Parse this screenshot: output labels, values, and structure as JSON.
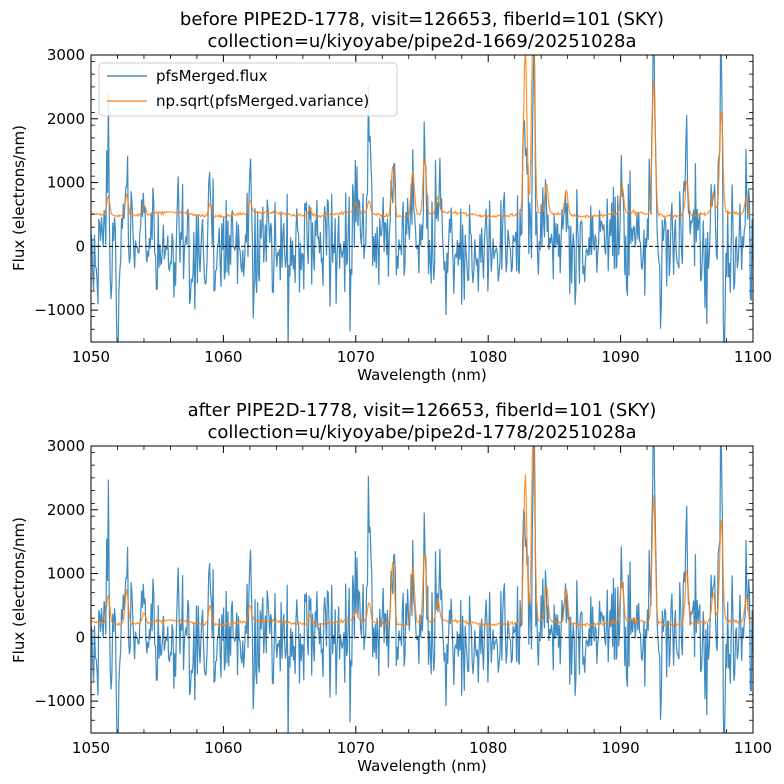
{
  "figure": {
    "background": "#ffffff"
  },
  "chart_data": [
    {
      "type": "line",
      "title_line1": "before PIPE2D-1778, visit=126653, fiberId=101 (SKY)",
      "title_line2": "collection=u/kiyoyabe/pipe2d-1669/20251028a",
      "xlabel": "Wavelength (nm)",
      "ylabel": "Flux (electrons/nm)",
      "xlim": [
        1050,
        1100
      ],
      "ylim": [
        -1500,
        3000
      ],
      "xticks": [
        1050,
        1060,
        1070,
        1080,
        1090,
        1100
      ],
      "xtick_labels": [
        "1050",
        "1060",
        "1070",
        "1080",
        "1090",
        "1100"
      ],
      "yticks": [
        -1000,
        0,
        1000,
        2000,
        3000
      ],
      "ytick_labels": [
        "−1000",
        "0",
        "1000",
        "2000",
        "3000"
      ],
      "hline": 0,
      "legend": {
        "position": "top-left",
        "entries": [
          "pfsMerged.flux",
          "np.sqrt(pfsMerged.variance)"
        ]
      },
      "noise_floor": 500,
      "series": [
        {
          "name": "pfsMerged.flux",
          "color": "#1f77b4"
        },
        {
          "name": "np.sqrt(pfsMerged.variance)",
          "color": "#ff7f0e"
        }
      ],
      "lines": [
        {
          "wl": 1051.3,
          "flux": 1650,
          "sigma": 300
        },
        {
          "wl": 1052.7,
          "flux": 700,
          "sigma": 350
        },
        {
          "wl": 1054.0,
          "flux": 500,
          "sigma": 150
        },
        {
          "wl": 1059.0,
          "flux": 900,
          "sigma": 200
        },
        {
          "wl": 1062.0,
          "flux": 700,
          "sigma": 200
        },
        {
          "wl": 1066.5,
          "flux": 600,
          "sigma": 120
        },
        {
          "wl": 1070.0,
          "flux": 500,
          "sigma": 150
        },
        {
          "wl": 1071.0,
          "flux": 1700,
          "sigma": 200
        },
        {
          "wl": 1072.8,
          "flux": 1200,
          "sigma": 800
        },
        {
          "wl": 1074.3,
          "flux": 1100,
          "sigma": 700
        },
        {
          "wl": 1075.2,
          "flux": 1400,
          "sigma": 900
        },
        {
          "wl": 1076.2,
          "flux": 600,
          "sigma": 250
        },
        {
          "wl": 1082.8,
          "flux": 3000,
          "sigma": 2600
        },
        {
          "wl": 1083.4,
          "flux": 3000,
          "sigma": 3000
        },
        {
          "wl": 1084.4,
          "flux": 700,
          "sigma": 450
        },
        {
          "wl": 1085.9,
          "flux": 600,
          "sigma": 400
        },
        {
          "wl": 1090.1,
          "flux": 950,
          "sigma": 450
        },
        {
          "wl": 1092.5,
          "flux": 3000,
          "sigma": 2100
        },
        {
          "wl": 1095.0,
          "flux": 1500,
          "sigma": 550
        },
        {
          "wl": 1097.0,
          "flux": 600,
          "sigma": 300
        },
        {
          "wl": 1097.6,
          "flux": 2200,
          "sigma": 1600
        },
        {
          "wl": 1099.5,
          "flux": 700,
          "sigma": 250
        }
      ],
      "absorptions": [
        {
          "wl": 1052.0,
          "flux": -1550
        },
        {
          "wl": 1082.8,
          "flux": -1550
        },
        {
          "wl": 1083.3,
          "flux": -1550
        },
        {
          "wl": 1093.0,
          "flux": -1100
        },
        {
          "wl": 1097.8,
          "flux": -1550
        },
        {
          "wl": 1051.5,
          "flux": -1000
        }
      ]
    },
    {
      "type": "line",
      "title_line1": "after PIPE2D-1778, visit=126653, fiberId=101 (SKY)",
      "title_line2": "collection=u/kiyoyabe/pipe2d-1778/20251028a",
      "xlabel": "Wavelength (nm)",
      "ylabel": "Flux (electrons/nm)",
      "xlim": [
        1050,
        1100
      ],
      "ylim": [
        -1500,
        3000
      ],
      "xticks": [
        1050,
        1060,
        1070,
        1080,
        1090,
        1100
      ],
      "xtick_labels": [
        "1050",
        "1060",
        "1070",
        "1080",
        "1090",
        "1100"
      ],
      "yticks": [
        -1000,
        0,
        1000,
        2000,
        3000
      ],
      "ytick_labels": [
        "−1000",
        "0",
        "1000",
        "2000",
        "3000"
      ],
      "hline": 0,
      "noise_floor": 230,
      "series": [
        {
          "name": "pfsMerged.flux",
          "color": "#1f77b4"
        },
        {
          "name": "np.sqrt(pfsMerged.variance)",
          "color": "#ff7f0e"
        }
      ],
      "lines": [
        {
          "wl": 1051.3,
          "flux": 1700,
          "sigma": 450
        },
        {
          "wl": 1052.7,
          "flux": 700,
          "sigma": 550
        },
        {
          "wl": 1054.0,
          "flux": 500,
          "sigma": 150
        },
        {
          "wl": 1059.0,
          "flux": 900,
          "sigma": 300
        },
        {
          "wl": 1062.0,
          "flux": 700,
          "sigma": 250
        },
        {
          "wl": 1066.5,
          "flux": 600,
          "sigma": 150
        },
        {
          "wl": 1070.0,
          "flux": 500,
          "sigma": 150
        },
        {
          "wl": 1071.0,
          "flux": 1700,
          "sigma": 300
        },
        {
          "wl": 1072.8,
          "flux": 1200,
          "sigma": 1000
        },
        {
          "wl": 1074.3,
          "flux": 1100,
          "sigma": 900
        },
        {
          "wl": 1075.2,
          "flux": 1400,
          "sigma": 1100
        },
        {
          "wl": 1076.2,
          "flux": 600,
          "sigma": 350
        },
        {
          "wl": 1082.8,
          "flux": 3000,
          "sigma": 2300
        },
        {
          "wl": 1083.4,
          "flux": 3000,
          "sigma": 3000
        },
        {
          "wl": 1084.4,
          "flux": 700,
          "sigma": 550
        },
        {
          "wl": 1085.9,
          "flux": 600,
          "sigma": 550
        },
        {
          "wl": 1090.1,
          "flux": 950,
          "sigma": 650
        },
        {
          "wl": 1092.5,
          "flux": 3000,
          "sigma": 2000
        },
        {
          "wl": 1095.0,
          "flux": 1500,
          "sigma": 850
        },
        {
          "wl": 1097.0,
          "flux": 600,
          "sigma": 450
        },
        {
          "wl": 1097.6,
          "flux": 2200,
          "sigma": 1600
        },
        {
          "wl": 1099.5,
          "flux": 700,
          "sigma": 400
        }
      ],
      "absorptions": [
        {
          "wl": 1052.0,
          "flux": -1550
        },
        {
          "wl": 1082.8,
          "flux": -1550
        },
        {
          "wl": 1083.3,
          "flux": -1550
        },
        {
          "wl": 1093.0,
          "flux": -1100
        },
        {
          "wl": 1097.8,
          "flux": -1550
        },
        {
          "wl": 1051.5,
          "flux": -1000
        }
      ]
    }
  ]
}
